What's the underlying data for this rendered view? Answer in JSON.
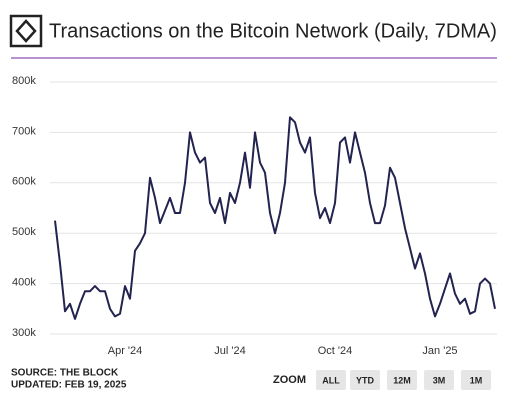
{
  "chart_data": {
    "type": "line",
    "title": "Transactions on the Bitcoin Network (Daily, 7DMA)",
    "color": "#23234f",
    "grid": true,
    "categories": [
      null,
      null,
      null,
      null,
      null,
      null,
      null,
      null,
      null,
      null,
      null,
      null,
      null,
      null,
      "Apr '24",
      null,
      null,
      null,
      null,
      null,
      null,
      null,
      null,
      null,
      null,
      null,
      null,
      null,
      null,
      null,
      null,
      null,
      null,
      null,
      null,
      "Jul '24",
      null,
      null,
      null,
      null,
      null,
      null,
      null,
      null,
      null,
      null,
      null,
      null,
      null,
      null,
      null,
      null,
      null,
      null,
      null,
      null,
      "Oct '24",
      null,
      null,
      null,
      null,
      null,
      null,
      null,
      null,
      null,
      null,
      null,
      null,
      null,
      null,
      null,
      null,
      null,
      null,
      null,
      null,
      "Jan '25",
      null,
      null,
      null,
      null,
      null,
      null,
      null,
      null,
      null,
      null,
      null
    ],
    "values": [
      525000,
      440000,
      345000,
      360000,
      330000,
      360000,
      385000,
      385000,
      395000,
      385000,
      385000,
      350000,
      335000,
      340000,
      395000,
      370000,
      465000,
      480000,
      500000,
      610000,
      570000,
      520000,
      545000,
      570000,
      540000,
      540000,
      600000,
      700000,
      660000,
      640000,
      650000,
      560000,
      540000,
      570000,
      520000,
      580000,
      560000,
      600000,
      660000,
      590000,
      700000,
      640000,
      620000,
      540000,
      500000,
      540000,
      600000,
      730000,
      720000,
      680000,
      660000,
      690000,
      580000,
      530000,
      550000,
      520000,
      560000,
      680000,
      690000,
      640000,
      700000,
      660000,
      620000,
      560000,
      520000,
      520000,
      555000,
      630000,
      610000,
      560000,
      510000,
      470000,
      430000,
      460000,
      420000,
      370000,
      335000,
      360000,
      390000,
      420000,
      380000,
      360000,
      370000,
      340000,
      345000,
      400000,
      410000,
      400000,
      350000
    ],
    "ylim": [
      300000,
      800000
    ],
    "yticks": [
      {
        "value": 300000,
        "label": "300k"
      },
      {
        "value": 400000,
        "label": "400k"
      },
      {
        "value": 500000,
        "label": "500k"
      },
      {
        "value": 600000,
        "label": "600k"
      },
      {
        "value": 700000,
        "label": "700k"
      },
      {
        "value": 800000,
        "label": "800k"
      }
    ]
  },
  "footer": {
    "source": "SOURCE: THE BLOCK",
    "updated": "UPDATED: FEB 19, 2025"
  },
  "zoom": {
    "label": "ZOOM",
    "buttons": [
      "ALL",
      "YTD",
      "12M",
      "3M",
      "1M"
    ]
  }
}
